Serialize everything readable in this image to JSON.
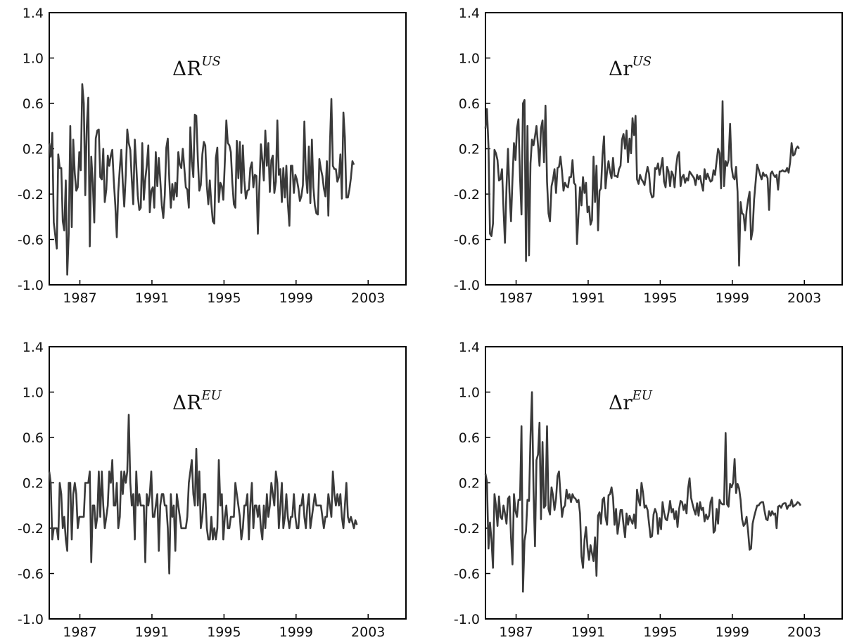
{
  "colors": {
    "line": "#3a3a3a",
    "axis": "#000000",
    "background": "#ffffff"
  },
  "chart_data": [
    {
      "type": "line",
      "title": "ΔR",
      "title_sup": "US",
      "title_italic": false,
      "xlim": [
        1985.3,
        2005.1
      ],
      "ylim": [
        -1.0,
        1.4
      ],
      "xticks": [
        1987,
        1991,
        1995,
        1999,
        2003
      ],
      "yticks": [
        1.4,
        1.0,
        0.6,
        0.2,
        -0.2,
        -0.6,
        -1.0
      ],
      "ytick_labels": [
        "1.4",
        "1.0",
        "0.6",
        "0.2",
        "-0.2",
        "-0.6",
        "-1.0"
      ],
      "x_start": 1985.3,
      "step": 0.0833,
      "series": [
        {
          "values": [
            0.25,
            0.13,
            0.34,
            -0.45,
            -0.56,
            -0.68,
            0.15,
            0.03,
            0.03,
            -0.44,
            -0.52,
            -0.08,
            -0.91,
            -0.55,
            0.4,
            -0.49,
            0.28,
            -0.02,
            -0.17,
            -0.14,
            0.17,
            0.01,
            0.77,
            0.6,
            -0.21,
            0.39,
            0.65,
            -0.66,
            0.13,
            -0.1,
            -0.45,
            0.29,
            0.36,
            0.37,
            -0.05,
            -0.07,
            0.2,
            -0.27,
            -0.16,
            0.14,
            0.05,
            0.14,
            0.19,
            -0.08,
            -0.3,
            -0.58,
            -0.18,
            0.03,
            0.19,
            -0.1,
            -0.31,
            -0.02,
            0.37,
            0.25,
            0.19,
            -0.07,
            -0.29,
            0.28,
            0.05,
            -0.21,
            -0.34,
            -0.32,
            0.25,
            -0.25,
            -0.07,
            0.05,
            0.23,
            -0.36,
            -0.17,
            -0.14,
            -0.32,
            0.17,
            -0.13,
            0.12,
            -0.08,
            -0.3,
            -0.41,
            -0.21,
            0.21,
            0.29,
            -0.07,
            -0.32,
            -0.11,
            -0.25,
            -0.1,
            -0.22,
            0.17,
            0.06,
            0.03,
            0.2,
            0.03,
            -0.14,
            -0.16,
            -0.32,
            0.39,
            0.09,
            -0.05,
            0.5,
            0.49,
            0.11,
            -0.17,
            -0.12,
            0.15,
            0.26,
            0.23,
            -0.13,
            -0.29,
            -0.08,
            -0.29,
            -0.44,
            -0.46,
            0.12,
            0.21,
            -0.27,
            -0.1,
            -0.13,
            -0.25,
            0.09,
            0.45,
            0.25,
            0.23,
            0.17,
            -0.1,
            -0.29,
            -0.32,
            0.27,
            -0.06,
            0.26,
            -0.19,
            0.23,
            -0.08,
            -0.24,
            -0.17,
            -0.16,
            0.03,
            0.08,
            -0.14,
            -0.03,
            -0.04,
            -0.55,
            -0.14,
            0.24,
            0.1,
            -0.08,
            0.36,
            0.05,
            0.25,
            -0.18,
            0.1,
            0.14,
            -0.19,
            -0.09,
            0.45,
            -0.03,
            0.02,
            -0.27,
            0.03,
            -0.23,
            0.05,
            -0.28,
            -0.48,
            0.05,
            0.05,
            -0.19,
            -0.03,
            -0.07,
            -0.15,
            -0.26,
            -0.22,
            -0.12,
            0.44,
            -0.02,
            -0.19,
            0.22,
            -0.28,
            0.28,
            -0.14,
            -0.3,
            -0.37,
            -0.38,
            0.11,
            0.02,
            -0.04,
            -0.15,
            -0.22,
            0.09,
            -0.39,
            0.23,
            0.64,
            0.05,
            0.02,
            0.02,
            -0.09,
            -0.05,
            0.15,
            -0.24,
            0.52,
            0.3,
            -0.23,
            -0.23,
            -0.16,
            -0.06,
            0.09,
            0.06
          ]
        }
      ]
    },
    {
      "type": "line",
      "title": "Δr",
      "title_sup": "US",
      "title_italic": true,
      "xlim": [
        1985.3,
        2005.1
      ],
      "ylim": [
        -1.0,
        1.4
      ],
      "xticks": [
        1987,
        1991,
        1995,
        1999,
        2003
      ],
      "yticks": [
        1.4,
        1.0,
        0.6,
        0.2,
        -0.2,
        -0.6,
        -1.0
      ],
      "ytick_labels": [
        "1.4",
        "1.0",
        "0.6",
        "0.2",
        "-0.2",
        "-0.6",
        "-1.0"
      ],
      "x_start": 1985.3,
      "step": 0.0833,
      "series": [
        {
          "values": [
            0.38,
            0.55,
            0.22,
            -0.55,
            -0.57,
            -0.46,
            0.19,
            0.16,
            0.1,
            -0.08,
            -0.07,
            0.02,
            -0.33,
            -0.63,
            -0.14,
            0.2,
            -0.18,
            -0.44,
            -0.07,
            0.25,
            0.1,
            0.38,
            0.46,
            -0.05,
            -0.38,
            0.6,
            0.63,
            -0.79,
            0.4,
            -0.74,
            0.07,
            0.28,
            0.23,
            0.31,
            0.4,
            0.23,
            0.05,
            0.38,
            0.45,
            0.08,
            0.58,
            -0.09,
            -0.37,
            -0.44,
            -0.13,
            -0.07,
            0.02,
            -0.19,
            0.03,
            0.04,
            0.13,
            0.0,
            -0.17,
            -0.1,
            -0.13,
            -0.14,
            -0.05,
            -0.05,
            0.1,
            -0.1,
            -0.12,
            -0.64,
            -0.38,
            -0.14,
            -0.3,
            -0.05,
            -0.19,
            -0.1,
            -0.36,
            -0.31,
            -0.47,
            -0.43,
            0.13,
            -0.27,
            0.05,
            -0.52,
            -0.17,
            -0.15,
            0.15,
            0.31,
            -0.15,
            0.0,
            0.09,
            0.0,
            -0.06,
            0.12,
            -0.04,
            -0.04,
            -0.05,
            0.02,
            0.05,
            0.28,
            0.33,
            0.2,
            0.36,
            0.08,
            0.29,
            0.16,
            0.47,
            0.32,
            0.49,
            -0.07,
            -0.11,
            -0.03,
            -0.07,
            -0.09,
            -0.12,
            -0.03,
            0.04,
            -0.02,
            -0.18,
            -0.23,
            -0.22,
            0.03,
            0.02,
            0.07,
            -0.03,
            0.04,
            0.12,
            -0.09,
            -0.14,
            0.04,
            0.0,
            -0.13,
            0.0,
            -0.03,
            -0.14,
            0.04,
            0.14,
            0.17,
            -0.13,
            -0.05,
            -0.03,
            -0.1,
            -0.06,
            -0.08,
            0.0,
            -0.02,
            -0.04,
            -0.06,
            -0.12,
            -0.03,
            -0.07,
            -0.04,
            -0.11,
            -0.17,
            0.02,
            -0.07,
            -0.02,
            -0.06,
            -0.09,
            -0.08,
            0.01,
            -0.03,
            0.09,
            0.2,
            0.16,
            -0.15,
            0.62,
            -0.13,
            0.09,
            0.05,
            0.1,
            0.42,
            0.04,
            -0.05,
            -0.07,
            0.04,
            -0.18,
            -0.83,
            -0.27,
            -0.37,
            -0.38,
            -0.52,
            -0.35,
            -0.25,
            -0.18,
            -0.6,
            -0.52,
            -0.25,
            -0.1,
            0.06,
            0.02,
            -0.03,
            -0.07,
            -0.01,
            -0.04,
            -0.03,
            -0.06,
            -0.34,
            -0.02,
            0.0,
            -0.03,
            -0.05,
            -0.03,
            -0.16,
            0.0,
            0.0,
            0.01,
            0.0,
            0.0,
            0.03,
            -0.01,
            0.08,
            0.25,
            0.14,
            0.15,
            0.2,
            0.22,
            0.2
          ]
        }
      ]
    },
    {
      "type": "line",
      "title": "ΔR",
      "title_sup": "EU",
      "title_italic": false,
      "xlim": [
        1985.3,
        2005.1
      ],
      "ylim": [
        -1.0,
        1.4
      ],
      "xticks": [
        1987,
        1991,
        1995,
        1999,
        2003
      ],
      "yticks": [
        1.4,
        1.0,
        0.6,
        0.2,
        -0.2,
        -0.6,
        -1.0
      ],
      "ytick_labels": [
        "1.4",
        "1.0",
        "0.6",
        "0.2",
        "-0.2",
        "-0.6",
        "-1.0"
      ],
      "x_start": 1985.3,
      "step": 0.0833,
      "series": [
        {
          "values": [
            0.3,
            0.2,
            -0.3,
            -0.2,
            -0.2,
            -0.2,
            -0.3,
            0.2,
            0.1,
            -0.2,
            -0.1,
            -0.3,
            -0.4,
            0.2,
            0.2,
            -0.3,
            0.1,
            0.2,
            0.1,
            -0.2,
            -0.1,
            -0.1,
            -0.1,
            -0.1,
            0.2,
            0.2,
            0.2,
            0.3,
            -0.5,
            0.0,
            0.0,
            -0.2,
            -0.1,
            0.3,
            -0.1,
            0.3,
            0.0,
            -0.2,
            -0.1,
            0.0,
            0.3,
            0.2,
            0.4,
            0.0,
            0.0,
            0.2,
            -0.2,
            -0.1,
            0.3,
            0.1,
            0.3,
            0.2,
            0.3,
            0.8,
            0.2,
            0.0,
            0.1,
            -0.3,
            0.3,
            0.0,
            0.1,
            0.0,
            0.0,
            0.0,
            -0.5,
            0.1,
            0.0,
            0.1,
            0.3,
            -0.1,
            -0.1,
            0.0,
            0.1,
            -0.4,
            0.0,
            0.1,
            0.1,
            0.0,
            0.0,
            -0.2,
            -0.6,
            0.1,
            -0.1,
            0.0,
            -0.4,
            0.1,
            0.0,
            -0.1,
            -0.2,
            -0.2,
            -0.2,
            -0.2,
            -0.1,
            0.2,
            0.3,
            0.4,
            0.1,
            0.0,
            0.5,
            0.0,
            0.3,
            -0.2,
            -0.1,
            0.1,
            0.1,
            -0.2,
            -0.3,
            -0.3,
            -0.1,
            -0.3,
            -0.2,
            -0.3,
            -0.2,
            0.4,
            0.0,
            0.1,
            -0.3,
            -0.1,
            0.0,
            -0.2,
            -0.2,
            -0.1,
            -0.1,
            -0.1,
            0.2,
            0.1,
            0.0,
            -0.1,
            -0.3,
            -0.2,
            0.0,
            0.0,
            0.1,
            -0.3,
            0.0,
            0.2,
            -0.2,
            0.0,
            0.0,
            -0.1,
            0.0,
            -0.2,
            -0.3,
            0.0,
            -0.2,
            0.1,
            -0.1,
            0.0,
            0.2,
            0.1,
            0.0,
            0.3,
            0.2,
            -0.2,
            0.0,
            0.2,
            -0.2,
            -0.1,
            0.1,
            -0.1,
            -0.2,
            -0.1,
            -0.1,
            0.1,
            -0.1,
            -0.2,
            -0.2,
            0.0,
            0.0,
            0.1,
            -0.1,
            -0.2,
            0.0,
            0.1,
            -0.2,
            -0.1,
            0.0,
            0.1,
            0.0,
            0.0,
            0.0,
            0.0,
            -0.1,
            -0.2,
            -0.1,
            -0.1,
            0.1,
            0.0,
            -0.1,
            0.3,
            0.1,
            0.0,
            0.1,
            0.0,
            0.1,
            -0.1,
            -0.2,
            0.0,
            0.2,
            -0.1,
            -0.15,
            -0.1,
            -0.15,
            -0.2,
            -0.13,
            -0.17
          ]
        }
      ]
    },
    {
      "type": "line",
      "title": "Δr",
      "title_sup": "EU",
      "title_italic": true,
      "xlim": [
        1985.3,
        2005.1
      ],
      "ylim": [
        -1.0,
        1.4
      ],
      "xticks": [
        1987,
        1991,
        1995,
        1999,
        2003
      ],
      "yticks": [
        1.4,
        1.0,
        0.6,
        0.2,
        -0.2,
        -0.6,
        -1.0
      ],
      "ytick_labels": [
        "1.4",
        "1.0",
        "0.6",
        "0.2",
        "-0.2",
        "-0.6",
        "-1.0"
      ],
      "x_start": 1985.3,
      "step": 0.0833,
      "series": [
        {
          "values": [
            0.28,
            0.21,
            -0.38,
            -0.15,
            -0.3,
            -0.55,
            0.1,
            0.0,
            -0.18,
            0.08,
            -0.1,
            -0.12,
            0.0,
            -0.07,
            -0.16,
            0.06,
            0.08,
            -0.28,
            -0.52,
            0.1,
            -0.05,
            -0.1,
            0.05,
            0.05,
            0.7,
            -0.76,
            -0.31,
            -0.23,
            0.05,
            0.04,
            0.61,
            1.0,
            0.13,
            -0.36,
            0.4,
            0.45,
            0.73,
            -0.12,
            0.56,
            -0.02,
            0.0,
            0.7,
            -0.03,
            -0.08,
            0.16,
            0.09,
            -0.04,
            0.06,
            0.26,
            0.3,
            0.1,
            -0.1,
            -0.02,
            0.0,
            0.14,
            0.06,
            0.1,
            0.03,
            0.1,
            0.07,
            0.06,
            0.03,
            0.05,
            -0.07,
            -0.45,
            -0.55,
            -0.3,
            -0.19,
            -0.37,
            -0.48,
            -0.35,
            -0.42,
            -0.49,
            -0.28,
            -0.62,
            -0.09,
            -0.06,
            -0.16,
            0.05,
            0.07,
            -0.1,
            -0.17,
            0.09,
            0.1,
            0.16,
            0.07,
            -0.17,
            -0.03,
            -0.25,
            -0.15,
            -0.04,
            -0.04,
            -0.17,
            -0.28,
            -0.07,
            -0.17,
            -0.09,
            -0.13,
            -0.16,
            -0.08,
            -0.2,
            0.14,
            0.05,
            0.0,
            0.2,
            0.11,
            -0.02,
            0.0,
            -0.04,
            -0.16,
            -0.28,
            -0.27,
            -0.08,
            -0.03,
            -0.07,
            -0.25,
            -0.11,
            -0.21,
            0.03,
            -0.06,
            -0.12,
            -0.13,
            -0.06,
            0.04,
            -0.06,
            -0.03,
            -0.12,
            -0.05,
            -0.19,
            -0.03,
            0.04,
            0.03,
            -0.04,
            0.01,
            -0.07,
            0.15,
            0.24,
            0.07,
            0.01,
            -0.04,
            -0.08,
            0.02,
            -0.09,
            0.03,
            -0.04,
            -0.02,
            -0.14,
            -0.08,
            -0.12,
            -0.09,
            0.03,
            0.07,
            -0.24,
            -0.22,
            -0.03,
            -0.16,
            0.05,
            0.02,
            0.01,
            0.01,
            0.64,
            0.01,
            -0.01,
            0.19,
            0.16,
            0.2,
            0.41,
            0.11,
            0.19,
            0.15,
            0.05,
            -0.12,
            -0.18,
            -0.16,
            -0.1,
            -0.23,
            -0.39,
            -0.38,
            -0.16,
            -0.1,
            -0.05,
            0.0,
            0.0,
            0.02,
            0.03,
            0.03,
            -0.05,
            -0.12,
            -0.13,
            -0.05,
            -0.09,
            -0.05,
            -0.08,
            -0.07,
            -0.2,
            -0.01,
            0.0,
            -0.02,
            0.01,
            0.02,
            0.02,
            -0.03,
            0.0,
            0.0,
            0.05,
            -0.01,
            0.0,
            0.01,
            0.03,
            0.02,
            0.0
          ]
        }
      ]
    }
  ]
}
